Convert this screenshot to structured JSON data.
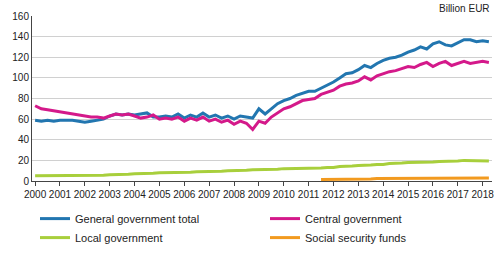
{
  "chart_data": {
    "type": "line",
    "y_label": "Billion EUR",
    "categories": [
      "2000",
      null,
      null,
      null,
      "2001",
      null,
      null,
      null,
      "2002",
      null,
      null,
      null,
      "2003",
      null,
      null,
      null,
      "2004",
      null,
      null,
      null,
      "2005",
      null,
      null,
      null,
      "2006",
      null,
      null,
      null,
      "2007",
      null,
      null,
      null,
      "2008",
      null,
      null,
      null,
      "2009",
      null,
      null,
      null,
      "2010",
      null,
      null,
      null,
      "2011",
      null,
      null,
      null,
      "2012",
      null,
      null,
      null,
      "2013",
      null,
      null,
      null,
      "2014",
      null,
      null,
      null,
      "2015",
      null,
      null,
      null,
      "2016",
      null,
      null,
      null,
      "2017",
      null,
      null,
      null,
      "2018",
      null
    ],
    "series": [
      {
        "name": "General government total",
        "color": "#2276b0",
        "values": [
          59,
          58,
          59,
          58,
          59,
          59,
          59,
          58,
          57,
          58,
          59,
          60,
          63,
          65,
          64,
          65,
          64,
          65,
          66,
          62,
          62,
          63,
          62,
          65,
          61,
          64,
          62,
          66,
          62,
          64,
          61,
          63,
          60,
          63,
          62,
          61,
          70,
          65,
          70,
          75,
          78,
          80,
          83,
          85,
          87,
          87,
          90,
          93,
          96,
          100,
          104,
          105,
          108,
          112,
          110,
          114,
          117,
          119,
          120,
          122,
          125,
          127,
          130,
          128,
          133,
          135,
          132,
          131,
          134,
          137,
          137,
          135,
          136,
          135
        ]
      },
      {
        "name": "Central government",
        "color": "#d4198a",
        "values": [
          73,
          70,
          69,
          68,
          67,
          66,
          65,
          64,
          63,
          62,
          62,
          61,
          63,
          65,
          64,
          65,
          63,
          61,
          62,
          64,
          60,
          61,
          60,
          62,
          58,
          61,
          59,
          62,
          58,
          60,
          57,
          59,
          55,
          58,
          56,
          50,
          58,
          56,
          62,
          66,
          70,
          72,
          75,
          78,
          79,
          80,
          84,
          86,
          88,
          92,
          94,
          95,
          97,
          101,
          98,
          102,
          104,
          106,
          107,
          109,
          111,
          110,
          113,
          115,
          111,
          114,
          116,
          112,
          114,
          116,
          114,
          115,
          116,
          115
        ]
      },
      {
        "name": "Local government",
        "color": "#a8cf3c",
        "values": [
          5,
          5,
          5,
          5,
          5,
          5,
          5,
          5,
          5,
          5,
          5.5,
          5.5,
          6,
          6,
          6,
          6.5,
          7,
          7,
          7,
          7.5,
          8,
          8,
          8,
          8,
          8.5,
          8.5,
          9,
          9,
          9,
          9.5,
          9.5,
          10,
          10,
          10,
          10.5,
          11,
          11,
          11,
          11.5,
          11.5,
          12,
          12,
          12,
          12,
          12,
          12.5,
          12.5,
          13,
          13,
          14,
          14,
          14.5,
          15,
          15,
          15.5,
          16,
          16,
          17,
          17,
          17.5,
          18,
          18,
          18,
          18.5,
          18.5,
          19,
          19,
          19.5,
          19.5,
          20,
          20,
          20,
          19.5,
          19.5
        ]
      },
      {
        "name": "Social security funds",
        "color": "#f29a1f",
        "values": [
          null,
          null,
          null,
          null,
          null,
          null,
          null,
          null,
          null,
          null,
          null,
          null,
          null,
          null,
          null,
          null,
          null,
          null,
          null,
          null,
          null,
          null,
          null,
          null,
          null,
          null,
          null,
          null,
          null,
          null,
          null,
          null,
          null,
          null,
          null,
          null,
          null,
          null,
          null,
          null,
          null,
          null,
          null,
          null,
          null,
          null,
          1.5,
          1.5,
          2,
          2,
          2,
          2,
          2,
          2,
          2,
          2.5,
          2.5,
          2.5,
          2.5,
          2.5,
          3,
          3,
          3,
          3,
          3,
          3,
          3,
          3,
          2.5,
          3,
          3,
          3,
          3,
          3
        ]
      }
    ],
    "ylim": [
      0,
      160
    ],
    "yticks": [
      0,
      20,
      40,
      60,
      80,
      100,
      120,
      140,
      160
    ],
    "grid": true,
    "legend": "bottom"
  }
}
